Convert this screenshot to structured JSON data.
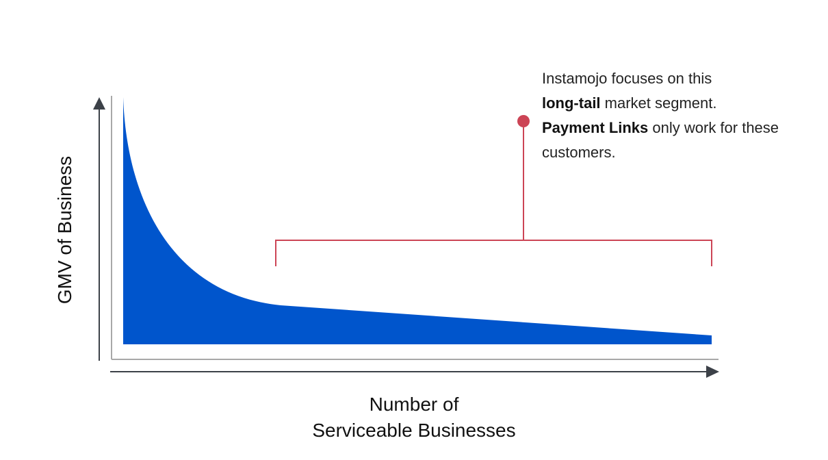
{
  "axes": {
    "y_label": "GMV of Business",
    "x_label_line1": "Number of",
    "x_label_line2": "Serviceable Businesses"
  },
  "annotation": {
    "line1": "Instamojo focuses on this",
    "line2_bold": "long-tail",
    "line2_rest": " market segment.",
    "line3_bold": "Payment Links",
    "line3_rest": " only work for these",
    "line4": "customers."
  },
  "colors": {
    "curve_fill": "#0055cc",
    "bracket": "#cc4455",
    "axis_arrow": "#3c4148",
    "frame": "#a8a8a8"
  }
}
